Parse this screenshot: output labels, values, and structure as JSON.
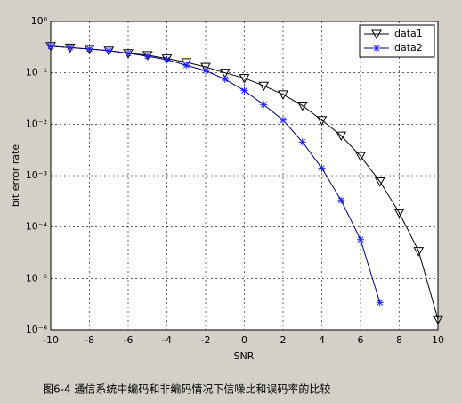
{
  "chart_data": {
    "type": "line",
    "xlabel": "SNR",
    "ylabel": "bit error rate",
    "caption": "图6-4   通信系统中编码和非编码情况下信噪比和误码率的比较",
    "x": [
      -10,
      -9,
      -8,
      -7,
      -6,
      -5,
      -4,
      -3,
      -2,
      -1,
      0,
      1,
      2,
      3,
      4,
      5,
      6,
      7,
      8,
      9,
      10
    ],
    "series": [
      {
        "name": "data1",
        "color": "#000000",
        "marker": "triangle-down",
        "values": [
          0.33,
          0.31,
          0.29,
          0.27,
          0.24,
          0.22,
          0.19,
          0.16,
          0.13,
          0.1,
          0.079,
          0.056,
          0.038,
          0.023,
          0.012,
          0.006,
          0.0024,
          0.00077,
          0.00019,
          3.4e-05,
          1.6e-06
        ]
      },
      {
        "name": "data2",
        "color": "#00007f",
        "marker": "asterisk",
        "values": [
          0.33,
          0.31,
          0.29,
          0.27,
          0.24,
          0.21,
          0.18,
          0.14,
          0.11,
          0.075,
          0.045,
          0.024,
          0.012,
          0.0045,
          0.0014,
          0.00033,
          5.7e-05,
          3.4e-06,
          null,
          null,
          null
        ]
      }
    ],
    "xlim": [
      -10,
      10
    ],
    "xticks": [
      -10,
      -8,
      -6,
      -4,
      -2,
      0,
      2,
      4,
      6,
      8,
      10
    ],
    "ylim": [
      1e-06,
      1
    ],
    "log_y": true,
    "yticks": [
      {
        "value": 1,
        "label": "10⁰"
      },
      {
        "value": 0.1,
        "label": "10⁻¹"
      },
      {
        "value": 0.01,
        "label": "10⁻²"
      },
      {
        "value": 0.001,
        "label": "10⁻³"
      },
      {
        "value": 0.0001,
        "label": "10⁻⁴"
      },
      {
        "value": 1e-05,
        "label": "10⁻⁵"
      },
      {
        "value": 1e-06,
        "label": "10⁻⁶"
      }
    ],
    "grid": true,
    "legend": "top-right"
  }
}
